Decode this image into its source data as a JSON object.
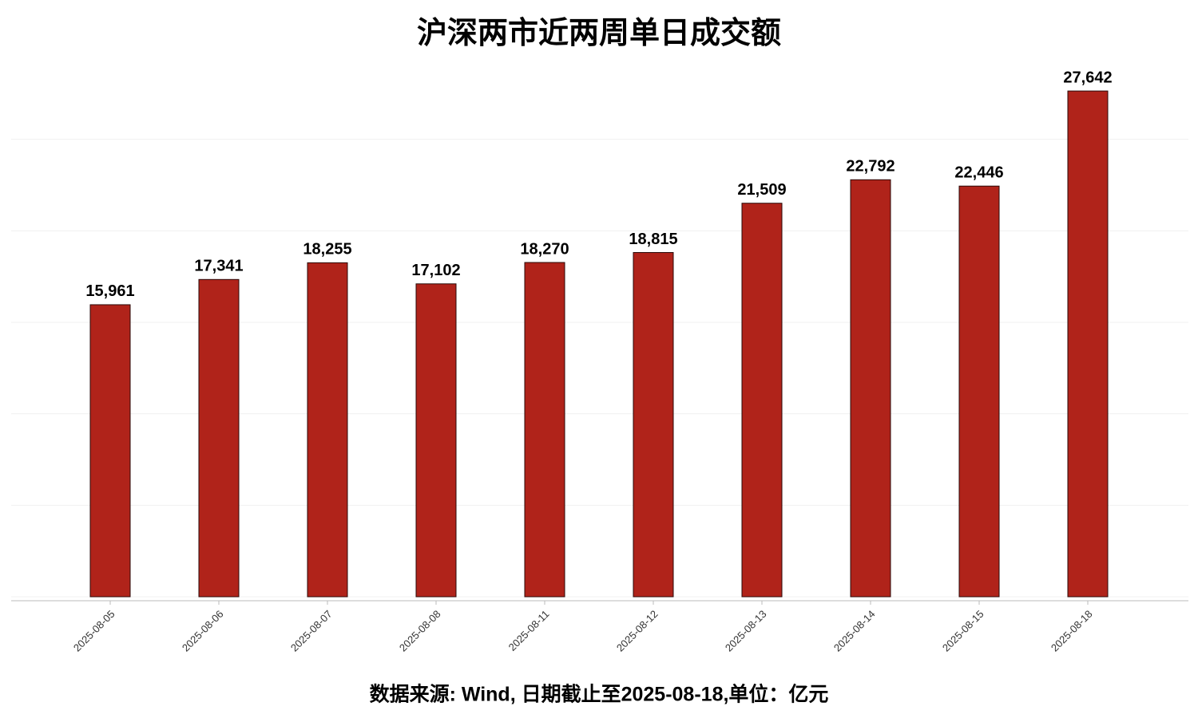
{
  "chart_data": {
    "type": "bar",
    "title": "沪深两市近两周单日成交额",
    "categories": [
      "2025-08-05",
      "2025-08-06",
      "2025-08-07",
      "2025-08-08",
      "2025-08-11",
      "2025-08-12",
      "2025-08-13",
      "2025-08-14",
      "2025-08-15",
      "2025-08-18"
    ],
    "values": [
      15961,
      17341,
      18255,
      17102,
      18270,
      18815,
      21509,
      22792,
      22446,
      27642
    ],
    "value_labels": [
      "15,961",
      "17,341",
      "18,255",
      "17,102",
      "18,270",
      "18,815",
      "21,509",
      "22,792",
      "22,446",
      "27,642"
    ],
    "color": "#b0231a",
    "ylim": [
      0,
      30000
    ],
    "yticks": [
      0,
      5000,
      10000,
      15000,
      20000,
      25000
    ],
    "grid": true,
    "footnote": "数据来源: Wind, 日期截止至2025-08-18,单位：亿元"
  }
}
